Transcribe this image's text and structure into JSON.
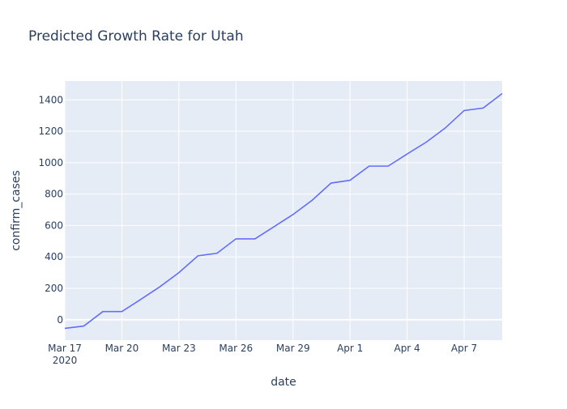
{
  "chart_data": {
    "type": "line",
    "title": "Predicted Growth Rate for Utah",
    "xlabel": "date",
    "ylabel": "confirm_cases",
    "x_tick_labels": [
      "Mar 17",
      "Mar 20",
      "Mar 23",
      "Mar 26",
      "Mar 29",
      "Apr 1",
      "Apr 4",
      "Apr 7"
    ],
    "x_tick_year": "2020",
    "y_tick_labels": [
      "0",
      "200",
      "400",
      "600",
      "800",
      "1000",
      "1200",
      "1400"
    ],
    "ylim": [
      -130,
      1520
    ],
    "xlim": [
      "2020-03-17",
      "2020-04-09"
    ],
    "grid": true,
    "line_color": "#636efa",
    "plot_bg": "#e5ecf6",
    "series": [
      {
        "x": [
          "2020-03-17",
          "2020-03-18",
          "2020-03-19",
          "2020-03-20",
          "2020-03-21",
          "2020-03-22",
          "2020-03-23",
          "2020-03-24",
          "2020-03-25",
          "2020-03-26",
          "2020-03-27",
          "2020-03-28",
          "2020-03-29",
          "2020-03-30",
          "2020-03-31",
          "2020-04-01",
          "2020-04-02",
          "2020-04-03",
          "2020-04-04",
          "2020-04-05",
          "2020-04-06",
          "2020-04-07",
          "2020-04-08",
          "2020-04-09"
        ],
        "values": [
          -55,
          -40,
          52,
          52,
          130,
          210,
          300,
          407,
          423,
          515,
          515,
          592,
          670,
          760,
          870,
          888,
          978,
          978,
          1055,
          1130,
          1220,
          1332,
          1348,
          1440
        ]
      }
    ]
  }
}
